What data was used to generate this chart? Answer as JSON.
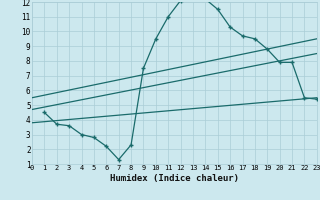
{
  "title": "",
  "xlabel": "Humidex (Indice chaleur)",
  "xlim": [
    0,
    23
  ],
  "ylim": [
    1,
    12
  ],
  "xticks": [
    0,
    1,
    2,
    3,
    4,
    5,
    6,
    7,
    8,
    9,
    10,
    11,
    12,
    13,
    14,
    15,
    16,
    17,
    18,
    19,
    20,
    21,
    22,
    23
  ],
  "yticks": [
    1,
    2,
    3,
    4,
    5,
    6,
    7,
    8,
    9,
    10,
    11,
    12
  ],
  "bg_color": "#cce8ee",
  "grid_color": "#aacdd6",
  "line_color": "#1a6b6b",
  "curve_x": [
    1,
    2,
    3,
    4,
    5,
    6,
    7,
    8,
    9,
    10,
    11,
    12,
    13,
    14,
    15,
    16,
    17,
    18,
    19,
    20,
    21,
    22,
    23
  ],
  "curve_y": [
    4.5,
    3.7,
    3.6,
    3.0,
    2.8,
    2.2,
    1.3,
    2.3,
    7.5,
    9.5,
    11.0,
    12.1,
    12.6,
    12.2,
    11.5,
    10.3,
    9.7,
    9.5,
    8.8,
    7.9,
    7.9,
    5.5,
    5.4
  ],
  "line1_x": [
    0,
    23
  ],
  "line1_y": [
    5.5,
    9.5
  ],
  "line2_x": [
    0,
    23
  ],
  "line2_y": [
    4.7,
    8.5
  ],
  "line3_x": [
    0,
    23
  ],
  "line3_y": [
    3.8,
    5.5
  ]
}
